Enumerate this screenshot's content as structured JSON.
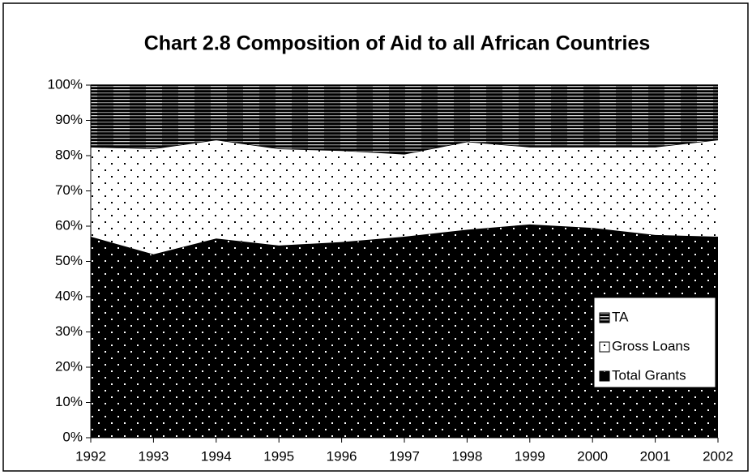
{
  "chart_data": {
    "type": "stacked_area",
    "title": "Chart 2.8 Composition of Aid to all African Countries",
    "categories": [
      "1992",
      "1993",
      "1994",
      "1995",
      "1996",
      "1997",
      "1998",
      "1999",
      "2000",
      "2001",
      "2002"
    ],
    "series": [
      {
        "name": "Total Grants",
        "color": "#000000",
        "pattern": "dots",
        "values": [
          57,
          52,
          56.5,
          54.5,
          55.5,
          57,
          59,
          60.5,
          59.5,
          57.5,
          57
        ]
      },
      {
        "name": "Gross Loans",
        "color": "#ffffff",
        "pattern": "dots",
        "values": [
          25.5,
          30,
          28,
          27.5,
          26,
          23.5,
          25,
          22,
          23,
          25,
          27.5
        ]
      },
      {
        "name": "TA",
        "color": "#808080",
        "pattern": "stripes",
        "values": [
          17.5,
          18,
          15.5,
          18,
          18.5,
          19.5,
          16,
          17.5,
          17.5,
          17.5,
          15.5
        ]
      }
    ],
    "ylim": [
      0,
      100
    ],
    "yticks": [
      {
        "value": 0,
        "label": "0%"
      },
      {
        "value": 10,
        "label": "10%"
      },
      {
        "value": 20,
        "label": "20%"
      },
      {
        "value": 30,
        "label": "30%"
      },
      {
        "value": 40,
        "label": "40%"
      },
      {
        "value": 50,
        "label": "50%"
      },
      {
        "value": 60,
        "label": "60%"
      },
      {
        "value": 70,
        "label": "70%"
      },
      {
        "value": 80,
        "label": "80%"
      },
      {
        "value": 90,
        "label": "90%"
      },
      {
        "value": 100,
        "label": "100%"
      }
    ],
    "legend": "lower right",
    "grid": false
  }
}
